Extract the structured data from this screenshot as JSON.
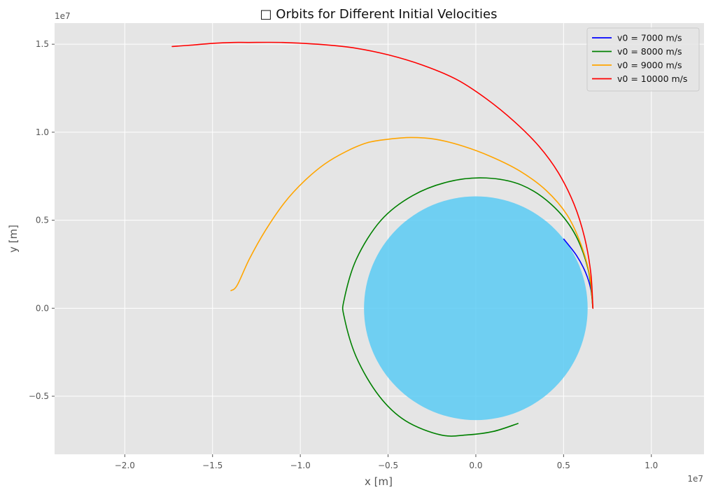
{
  "chart_data": {
    "type": "line",
    "title": "□ Orbits for Different Initial Velocities",
    "xlabel": "x [m]",
    "ylabel": "y [m]",
    "x_offset_label": "1e7",
    "y_offset_label": "1e7",
    "xlim": [
      -2.4,
      1.3
    ],
    "ylim": [
      -0.83,
      1.62
    ],
    "xticks": [
      -2.0,
      -1.5,
      -1.0,
      -0.5,
      0.0,
      0.5,
      1.0
    ],
    "xtick_labels": [
      "−2.0",
      "−1.5",
      "−1.0",
      "−0.5",
      "0.0",
      "0.5",
      "1.0"
    ],
    "yticks": [
      -0.5,
      0.0,
      0.5,
      1.0,
      1.5
    ],
    "ytick_labels": [
      "−0.5",
      "0.0",
      "0.5",
      "1.0",
      "1.5"
    ],
    "grid": true,
    "legend_position": "top-right",
    "earth": {
      "center": [
        0,
        0
      ],
      "radius": 0.6371,
      "color": "#5bcbf5"
    },
    "series": [
      {
        "name": "v0 = 7000 m/s",
        "color": "#0000ff",
        "x": [
          0.6671,
          0.6563,
          0.6246,
          0.5726,
          0.5015
        ],
        "y": [
          0.0,
          0.1035,
          0.2047,
          0.3014,
          0.3926
        ]
      },
      {
        "name": "v0 = 8000 m/s",
        "color": "#008000",
        "x": [
          0.6671,
          0.64,
          0.56,
          0.43,
          0.26,
          0.06,
          -0.15,
          -0.36,
          -0.54,
          -0.68,
          -0.75,
          -0.75,
          -0.68,
          -0.55,
          -0.4,
          -0.2,
          -0.05,
          0.1,
          0.24
        ],
        "y": [
          0.0,
          0.22,
          0.43,
          0.59,
          0.7,
          0.74,
          0.72,
          0.64,
          0.5,
          0.28,
          0.05,
          -0.05,
          -0.28,
          -0.5,
          -0.64,
          -0.72,
          -0.72,
          -0.7,
          -0.655
        ]
      },
      {
        "name": "v0 = 9000 m/s",
        "color": "#ffa500",
        "x": [
          0.6671,
          0.65,
          0.6,
          0.52,
          0.4,
          0.25,
          0.09,
          -0.07,
          -0.23,
          -0.37,
          -0.5,
          -0.62,
          -0.74,
          -0.86,
          -0.98,
          -1.09,
          -1.2,
          -1.29,
          -1.36,
          -1.395
        ],
        "y": [
          0.0,
          0.18,
          0.36,
          0.53,
          0.67,
          0.78,
          0.86,
          0.92,
          0.96,
          0.97,
          0.96,
          0.94,
          0.89,
          0.82,
          0.72,
          0.6,
          0.44,
          0.28,
          0.13,
          0.1
        ]
      },
      {
        "name": "v0 = 10000 m/s",
        "color": "#ff0000",
        "x": [
          0.6671,
          0.655,
          0.62,
          0.56,
          0.47,
          0.36,
          0.22,
          0.06,
          -0.11,
          -0.3,
          -0.5,
          -0.7,
          -0.9,
          -1.1,
          -1.3,
          -1.38,
          -1.5,
          -1.62,
          -1.73
        ],
        "y": [
          0.0,
          0.2,
          0.4,
          0.59,
          0.77,
          0.92,
          1.06,
          1.19,
          1.3,
          1.38,
          1.44,
          1.48,
          1.5,
          1.51,
          1.51,
          1.51,
          1.505,
          1.495,
          1.487
        ]
      }
    ]
  }
}
